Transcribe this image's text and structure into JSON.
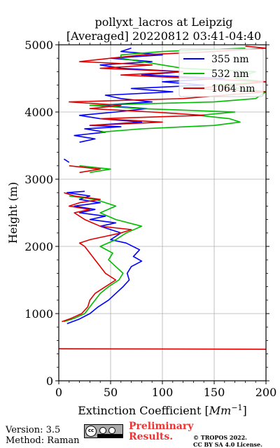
{
  "title_line1": "pollyxt_lacros at Leipzig",
  "title_line2": "[Averaged] 20220812 03:41-04:40",
  "footer": {
    "version": "Version: 3.5",
    "method": "Method: Raman",
    "preliminary_line1": "Preliminary",
    "preliminary_line2": "Results.",
    "copyright_line1": "© TROPOS 2022.",
    "copyright_line2": "CC BY SA 4.0 License.",
    "license_badge_icon": "cc-by-sa-icon"
  },
  "chart_data": {
    "type": "line",
    "title": "pollyxt_lacros at Leipzig [Averaged] 20220812 03:41-04:40",
    "xlabel": "Extinction Coefficient [Mm⁻¹]",
    "ylabel": "Height (m)",
    "xlim": [
      0,
      200
    ],
    "ylim": [
      0,
      5000
    ],
    "xticks": [
      "0",
      "50",
      "100",
      "150",
      "200"
    ],
    "yticks": [
      "0",
      "1000",
      "2000",
      "3000",
      "4000",
      "5000"
    ],
    "grid": true,
    "legend_position": "top-right",
    "series": [
      {
        "name": "355 nm",
        "color": "#0000ff",
        "points": [
          [
            8,
            850
          ],
          [
            20,
            920
          ],
          [
            30,
            1000
          ],
          [
            38,
            1100
          ],
          [
            48,
            1200
          ],
          [
            55,
            1300
          ],
          [
            62,
            1400
          ],
          [
            68,
            1500
          ],
          [
            66,
            1600
          ],
          [
            70,
            1700
          ],
          [
            80,
            1780
          ],
          [
            72,
            1850
          ],
          [
            78,
            1950
          ],
          [
            65,
            2050
          ],
          [
            50,
            2100
          ],
          [
            60,
            2200
          ],
          [
            40,
            2300
          ],
          [
            55,
            2350
          ],
          [
            30,
            2400
          ],
          [
            45,
            2450
          ],
          [
            20,
            2500
          ],
          [
            35,
            2550
          ],
          [
            15,
            2600
          ],
          [
            40,
            2650
          ],
          [
            20,
            2700
          ],
          [
            30,
            2750
          ],
          [
            8,
            2800
          ],
          [
            25,
            2820
          ],
          null,
          [
            10,
            3250
          ],
          [
            5,
            3300
          ],
          null,
          [
            20,
            3550
          ],
          [
            35,
            3600
          ],
          [
            15,
            3650
          ],
          [
            45,
            3700
          ],
          [
            25,
            3750
          ],
          [
            60,
            3780
          ],
          [
            30,
            3800
          ],
          [
            80,
            3850
          ],
          [
            40,
            3900
          ],
          [
            20,
            3950
          ],
          [
            55,
            4000
          ],
          [
            85,
            4050
          ],
          [
            40,
            4100
          ],
          [
            90,
            4150
          ],
          [
            60,
            4200
          ],
          [
            45,
            4250
          ],
          [
            110,
            4300
          ],
          [
            70,
            4350
          ],
          [
            140,
            4400
          ],
          [
            100,
            4450
          ],
          [
            160,
            4500
          ],
          [
            80,
            4550
          ],
          [
            120,
            4600
          ],
          [
            60,
            4650
          ],
          [
            40,
            4700
          ],
          [
            90,
            4750
          ],
          [
            50,
            4800
          ],
          [
            100,
            4850
          ],
          [
            60,
            4900
          ],
          [
            70,
            4950
          ]
        ]
      },
      {
        "name": "532 nm",
        "color": "#00bb00",
        "points": [
          [
            5,
            880
          ],
          [
            15,
            930
          ],
          [
            25,
            1000
          ],
          [
            30,
            1100
          ],
          [
            35,
            1200
          ],
          [
            40,
            1300
          ],
          [
            48,
            1400
          ],
          [
            58,
            1500
          ],
          [
            62,
            1600
          ],
          [
            55,
            1700
          ],
          [
            48,
            1800
          ],
          [
            52,
            1900
          ],
          [
            40,
            2000
          ],
          [
            55,
            2100
          ],
          [
            65,
            2200
          ],
          [
            80,
            2300
          ],
          [
            55,
            2400
          ],
          [
            40,
            2500
          ],
          [
            55,
            2600
          ],
          [
            35,
            2700
          ],
          [
            10,
            2750
          ],
          null,
          [
            30,
            3100
          ],
          [
            50,
            3150
          ],
          [
            20,
            3200
          ],
          null,
          [
            40,
            3700
          ],
          [
            80,
            3750
          ],
          [
            150,
            3800
          ],
          [
            175,
            3850
          ],
          [
            165,
            3900
          ],
          [
            135,
            3950
          ],
          [
            170,
            4000
          ],
          [
            80,
            4050
          ],
          [
            30,
            4100
          ],
          [
            150,
            4150
          ],
          [
            190,
            4200
          ],
          [
            200,
            4300
          ],
          [
            150,
            4400
          ],
          [
            200,
            4450
          ],
          [
            170,
            4500
          ],
          [
            190,
            4600
          ],
          [
            120,
            4650
          ],
          [
            100,
            4700
          ],
          [
            60,
            4800
          ],
          [
            60,
            4850
          ],
          [
            100,
            4900
          ],
          [
            180,
            4950
          ]
        ]
      },
      {
        "name": "1064 nm",
        "color": "#dd0000",
        "points": [
          [
            0,
            477
          ],
          [
            200,
            470
          ],
          null,
          [
            3,
            880
          ],
          [
            12,
            930
          ],
          [
            22,
            1000
          ],
          [
            28,
            1100
          ],
          [
            30,
            1200
          ],
          [
            35,
            1300
          ],
          [
            45,
            1400
          ],
          [
            55,
            1500
          ],
          [
            45,
            1600
          ],
          [
            40,
            1700
          ],
          [
            35,
            1800
          ],
          [
            30,
            1900
          ],
          [
            25,
            2000
          ],
          [
            20,
            2050
          ],
          [
            30,
            2100
          ],
          [
            45,
            2150
          ],
          [
            60,
            2200
          ],
          [
            70,
            2250
          ],
          [
            40,
            2300
          ],
          [
            25,
            2400
          ],
          [
            15,
            2500
          ],
          [
            30,
            2550
          ],
          [
            10,
            2600
          ],
          [
            20,
            2650
          ],
          [
            40,
            2700
          ],
          [
            15,
            2750
          ],
          [
            5,
            2800
          ],
          null,
          [
            20,
            3100
          ],
          [
            40,
            3150
          ],
          [
            10,
            3200
          ],
          null,
          [
            30,
            3800
          ],
          [
            100,
            3850
          ],
          [
            40,
            3900
          ],
          [
            140,
            3950
          ],
          [
            90,
            4000
          ],
          [
            30,
            4050
          ],
          [
            60,
            4100
          ],
          [
            10,
            4150
          ],
          [
            120,
            4200
          ],
          [
            200,
            4300
          ],
          [
            130,
            4350
          ],
          [
            170,
            4400
          ],
          [
            200,
            4450
          ],
          [
            60,
            4550
          ],
          [
            120,
            4600
          ],
          [
            40,
            4650
          ],
          [
            90,
            4700
          ],
          [
            20,
            4750
          ],
          [
            50,
            4800
          ],
          [
            80,
            4850
          ],
          [
            150,
            4900
          ],
          [
            200,
            4950
          ],
          [
            180,
            4980
          ]
        ]
      }
    ]
  }
}
